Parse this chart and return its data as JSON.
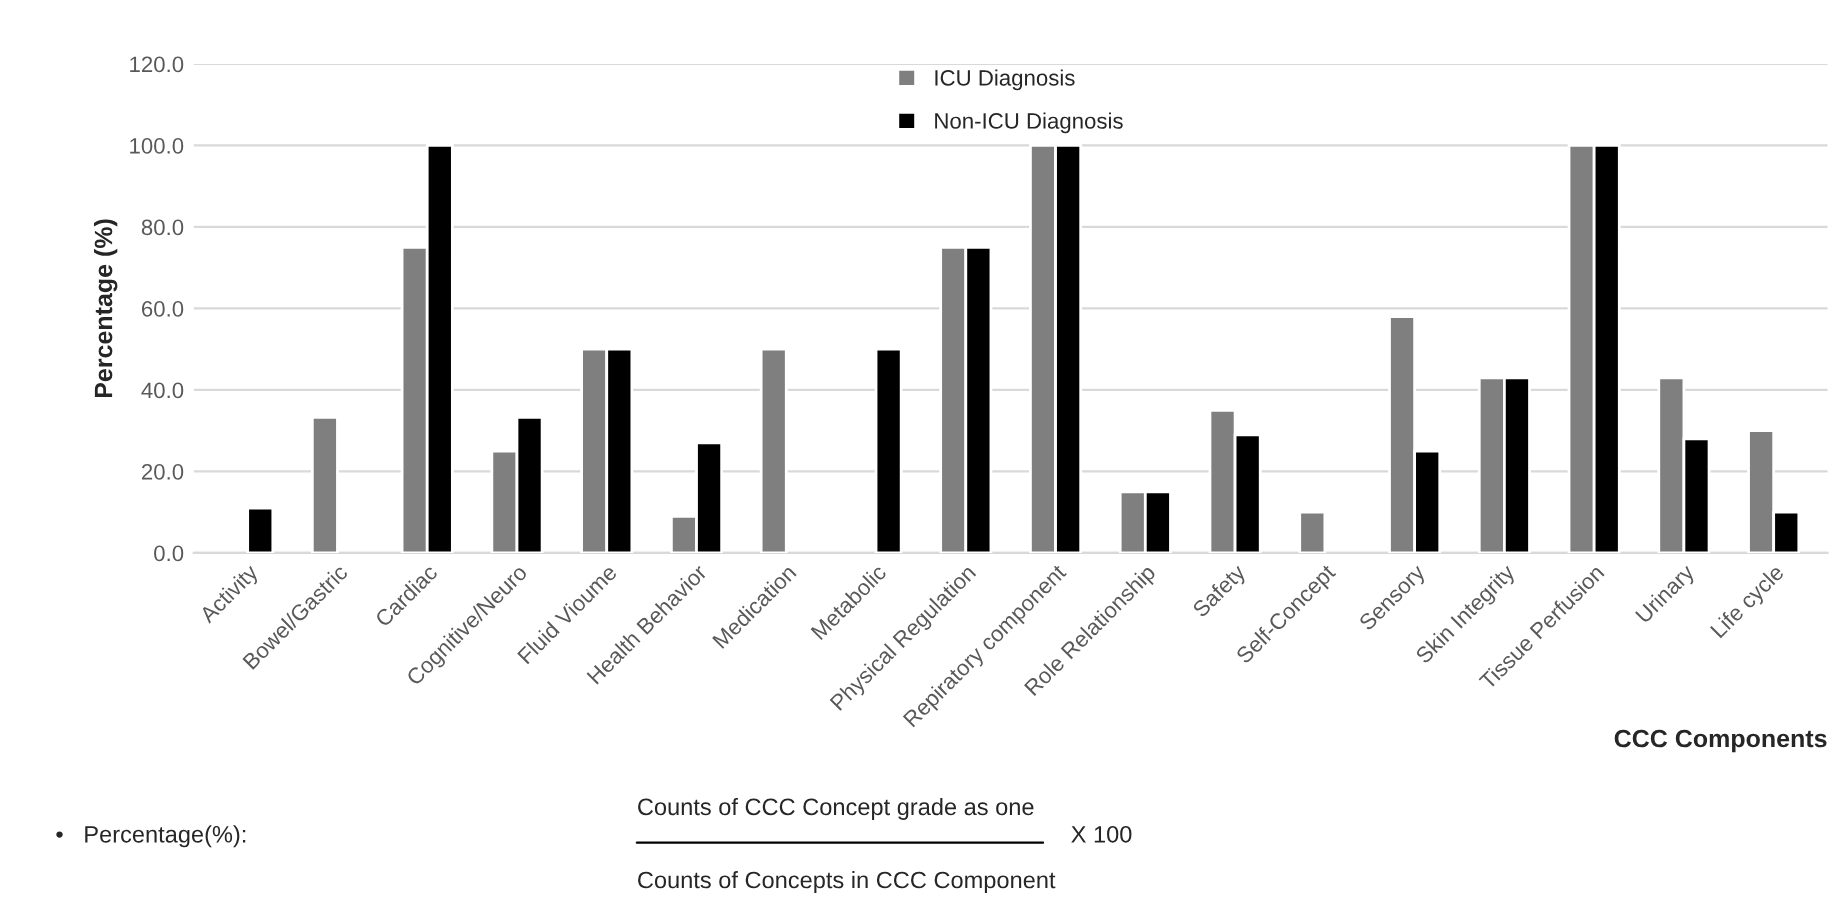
{
  "chart_data": {
    "type": "bar",
    "ylabel": "Percentage (%)",
    "xlabel": "CCC Components",
    "categories": [
      "Activity",
      "Bowel/Gastric",
      "Cardiac",
      "Cognitive/Neuro",
      "Fluid Vioume",
      "Health Behavior",
      "Medication",
      "Metabolic",
      "Physical Regulation",
      "Repiratory component",
      "Role Relationship",
      "Safety",
      "Self-Concept",
      "Sensory",
      "Skin Integrity",
      "Tissue Perfusion",
      "Urinary",
      "Life cycle"
    ],
    "series": [
      {
        "name": "ICU Diagnosis",
        "color": "#7f7f7f",
        "values": [
          null,
          33.3,
          75,
          25,
          50,
          9,
          50,
          null,
          75,
          100,
          15,
          35,
          10,
          58,
          43,
          100,
          43,
          30
        ]
      },
      {
        "name": "Non-ICU Diagnosis",
        "color": "#000000",
        "values": [
          11,
          null,
          100,
          33.3,
          50,
          27,
          null,
          50,
          75,
          100,
          15,
          29,
          null,
          25,
          43,
          100,
          28,
          10
        ]
      }
    ],
    "ylim": [
      0,
      120
    ],
    "yticks": [
      {
        "value": 0,
        "label": "0.0"
      },
      {
        "value": 20,
        "label": "20.0"
      },
      {
        "value": 40,
        "label": "40.0"
      },
      {
        "value": 60,
        "label": "60.0"
      },
      {
        "value": 80,
        "label": "80.0"
      },
      {
        "value": 100,
        "label": "100.0"
      },
      {
        "value": 120,
        "label": "120.0"
      }
    ],
    "grid": "y",
    "legend": "top",
    "annotations": [
      "•   Percentage(%):",
      "Counts of CCC Concept grade as one",
      "Counts of Concepts in CCC Component",
      "X 100"
    ]
  }
}
